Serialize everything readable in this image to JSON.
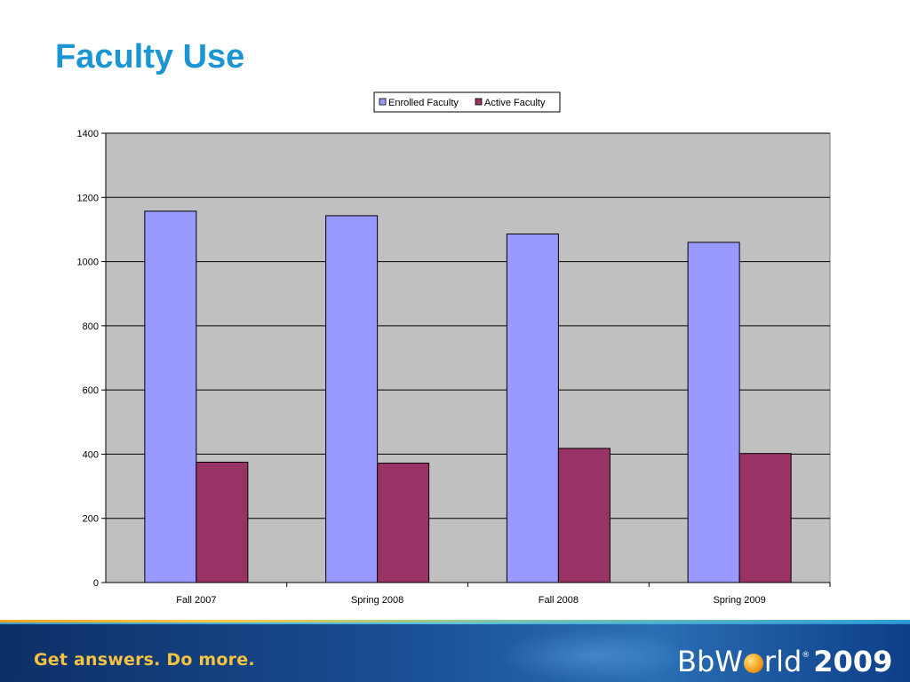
{
  "slide": {
    "title": "Faculty Use"
  },
  "footer": {
    "tagline": "Get answers. Do more.",
    "brand_prefix": "BbW",
    "brand_suffix": "rld",
    "brand_tm": "®",
    "brand_year": "2009"
  },
  "colors": {
    "title": "#1b95d3",
    "plot_background": "#c0c0c0",
    "enrolled": "#9999ff",
    "active": "#993366"
  },
  "chart_data": {
    "type": "bar",
    "categories": [
      "Fall 2007",
      "Spring 2008",
      "Fall 2008",
      "Spring 2009"
    ],
    "series": [
      {
        "name": "Enrolled Faculty",
        "values": [
          1157,
          1143,
          1086,
          1060
        ],
        "color": "#9999ff"
      },
      {
        "name": "Active Faculty",
        "values": [
          375,
          372,
          418,
          402
        ],
        "color": "#993366"
      }
    ],
    "yticks": [
      "0",
      "200",
      "400",
      "600",
      "800",
      "1000",
      "1200",
      "1400"
    ],
    "ylim": [
      0,
      1400
    ],
    "grid": true,
    "legend": "top-center"
  }
}
